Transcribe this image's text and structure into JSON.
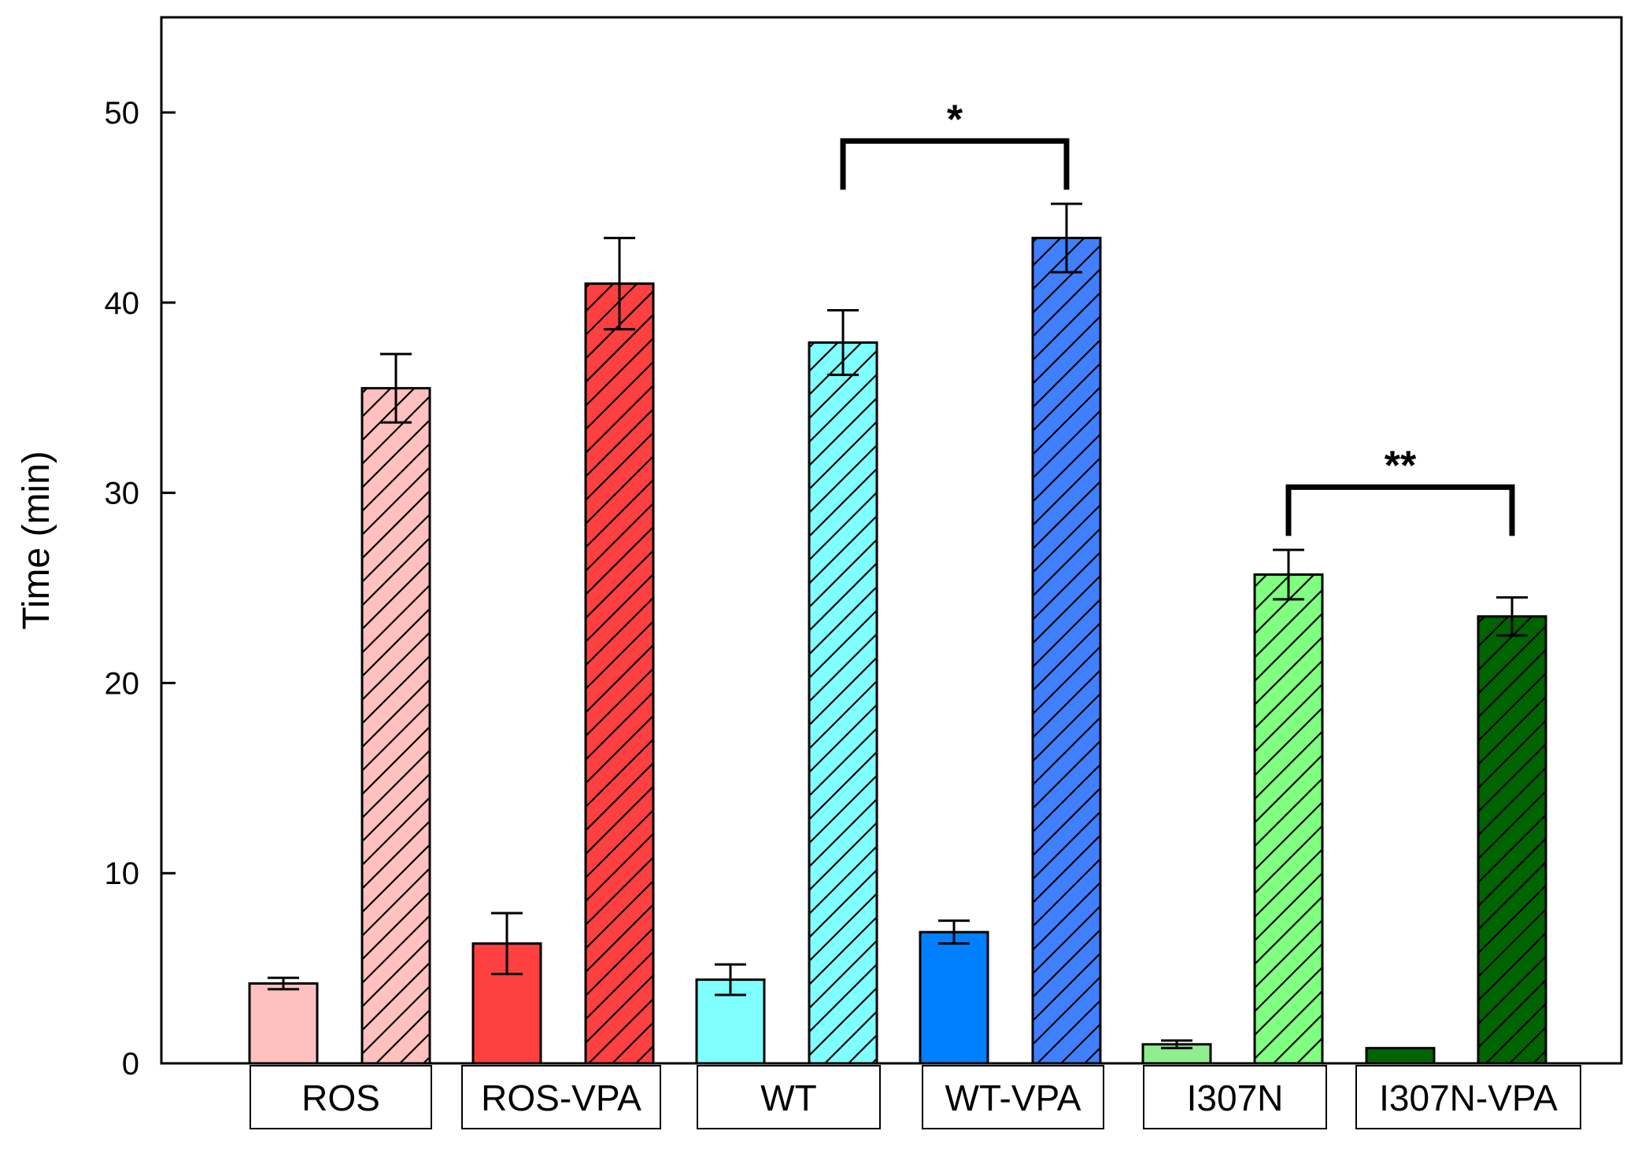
{
  "chart_data": {
    "type": "bar",
    "title": "",
    "xlabel": "",
    "ylabel": "Time (min)",
    "ylim": [
      0,
      55
    ],
    "yticks": [
      0,
      10,
      20,
      30,
      40,
      50
    ],
    "grid": false,
    "categories": [
      "ROS",
      "ROS-VPA",
      "WT",
      "WT-VPA",
      "I307N",
      "I307N-VPA"
    ],
    "series": [
      {
        "name": "solid",
        "hatched": false,
        "values": [
          4.2,
          6.3,
          4.4,
          6.9,
          1.0,
          0.8
        ],
        "errors": [
          0.3,
          1.6,
          0.8,
          0.6,
          0.2,
          0.0
        ],
        "colors": [
          "#ffc0c0",
          "#ff4040",
          "#80ffff",
          "#0080ff",
          "#90ee90",
          "#006400"
        ]
      },
      {
        "name": "hatched",
        "hatched": true,
        "values": [
          35.5,
          41.0,
          37.9,
          43.4,
          25.7,
          23.5
        ],
        "errors": [
          1.8,
          2.4,
          1.7,
          1.8,
          1.3,
          1.0
        ],
        "colors": [
          "#ffc0c0",
          "#ff4040",
          "#80ffff",
          "#4080ff",
          "#80ff80",
          "#006400"
        ]
      }
    ],
    "annotations": [
      {
        "text": "*",
        "from_group": 2,
        "to_group": 3,
        "y": 48.5
      },
      {
        "text": "**",
        "from_group": 4,
        "to_group": 5,
        "y": 30.3
      }
    ]
  }
}
